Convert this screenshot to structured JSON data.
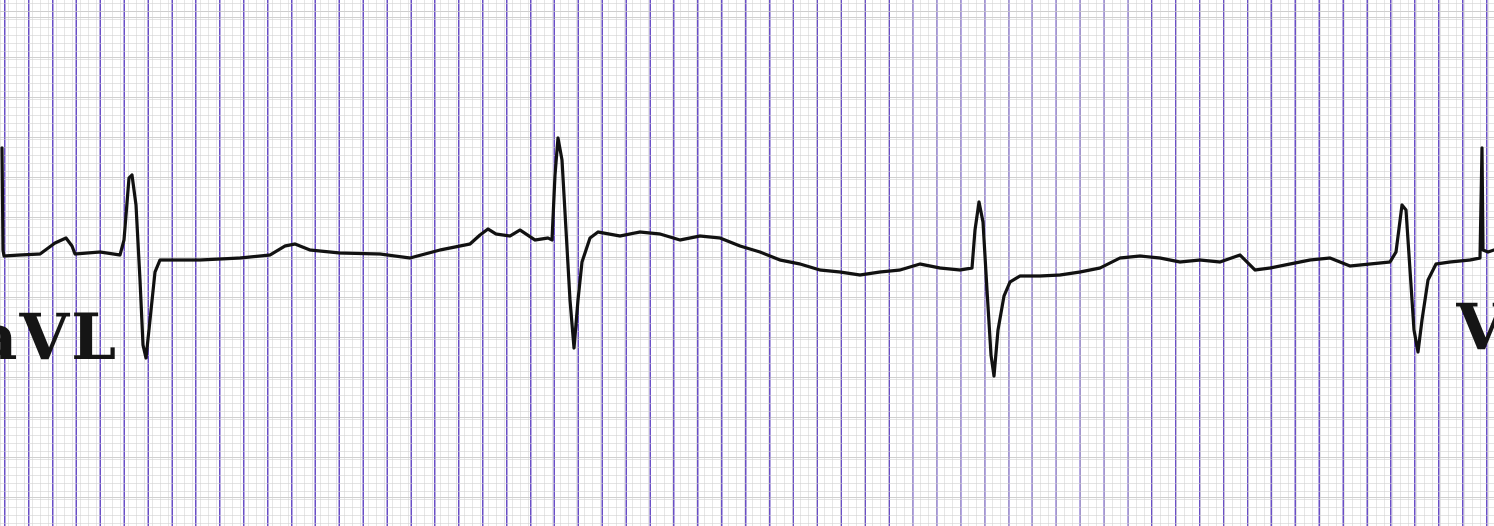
{
  "strip": {
    "lead_left": "aVL",
    "lead_right": "V",
    "colors": {
      "paper": "#ffffff",
      "major_grid": "#6a4fc6",
      "minor_grid": "#d2d2d2",
      "trace": "#111111"
    }
  }
}
